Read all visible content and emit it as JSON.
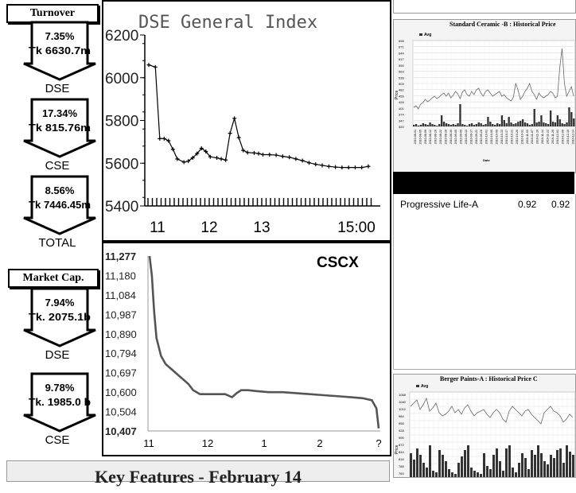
{
  "left": {
    "turnover_label": "Turnover",
    "market_cap_label": "Market Cap.",
    "arrows": [
      {
        "pct": "7.35%",
        "amount": "Tk 6630.7m",
        "exchange": "DSE"
      },
      {
        "pct": "17.34%",
        "amount": "Tk 815.76m",
        "exchange": "CSE"
      },
      {
        "pct": "8.56%",
        "amount": "Tk 7446.45m",
        "exchange": "TOTAL"
      },
      {
        "pct": "7.94%",
        "amount": "Tk. 2075.1b",
        "exchange": "DSE"
      },
      {
        "pct": "9.78%",
        "amount": "Tk. 1985.0 b",
        "exchange": "CSE"
      }
    ],
    "arrow_direction": "down"
  },
  "footer": {
    "key_features": "Key Features - February 14"
  },
  "right": {
    "chart1_title": "Standard Ceramic -B : Historical Price",
    "chart1_legend": "Avg",
    "chart1_ylabel": "Price",
    "chart1_xlabel": "Date",
    "chart1_yticks": [
      "698",
      "671",
      "644",
      "617",
      "590",
      "563",
      "536",
      "509",
      "482",
      "455",
      "428",
      "401",
      "374",
      "347",
      "320"
    ],
    "chart1_xticks": [
      "2010-08-01",
      "2010-08-05",
      "2010-08-09",
      "2010-08-12",
      "2010-08-16",
      "2010-08-22",
      "2010-08-26",
      "2010-08-30",
      "2010-09-05",
      "2010-09-09",
      "2010-09-13",
      "2010-09-17",
      "2010-09-21",
      "2010-09-26",
      "2010-10-01",
      "2010-10-05",
      "2010-10-09",
      "2010-10-13",
      "2010-10-17",
      "2010-10-21",
      "2010-10-26",
      "2010-10-31",
      "2010-11-03",
      "2010-11-07",
      "2010-11-10",
      "2010-11-14",
      "2010-11-22",
      "2010-11-26",
      "2010-12-01",
      "2010-12-06",
      "2010-12-10",
      "2010-12-14"
    ],
    "ticker": {
      "name": "Progressive Life-A",
      "v1": "0.92",
      "v2": "0.92"
    },
    "chart2_title": "Berger Paints-A : Historical Price C",
    "chart2_legend": "Avg",
    "chart2_ylabel": "Price",
    "chart2_yticks": [
      "1068",
      "1040",
      "1012",
      "984",
      "956",
      "928",
      "900",
      "872",
      "844",
      "816",
      "788",
      "760"
    ]
  },
  "chart_data": [
    {
      "type": "line",
      "title": "DSE General Index",
      "x_ticks": [
        "11",
        "12",
        "13",
        "15:00"
      ],
      "y_ticks": [
        "6200",
        "6000",
        "5800",
        "5600",
        "5400"
      ],
      "ylim": [
        5400,
        6200
      ],
      "xlim": [
        0,
        1
      ],
      "x": [
        0.0,
        0.03,
        0.05,
        0.07,
        0.09,
        0.11,
        0.13,
        0.16,
        0.18,
        0.2,
        0.22,
        0.24,
        0.26,
        0.28,
        0.31,
        0.33,
        0.35,
        0.37,
        0.39,
        0.41,
        0.43,
        0.45,
        0.48,
        0.5,
        0.52,
        0.55,
        0.58,
        0.61,
        0.64,
        0.67,
        0.7,
        0.73,
        0.76,
        0.79,
        0.82,
        0.85,
        0.88,
        0.91,
        0.94,
        0.97,
        1.0
      ],
      "values": [
        6060,
        6050,
        5715,
        5715,
        5705,
        5665,
        5620,
        5605,
        5610,
        5625,
        5645,
        5670,
        5655,
        5630,
        5625,
        5620,
        5615,
        5740,
        5810,
        5720,
        5660,
        5650,
        5648,
        5645,
        5640,
        5640,
        5638,
        5632,
        5628,
        5620,
        5612,
        5602,
        5595,
        5590,
        5585,
        5582,
        5580,
        5580,
        5580,
        5580,
        5585
      ],
      "grid": false
    },
    {
      "type": "line",
      "title": "CSCX",
      "x_ticks": [
        "11",
        "12",
        "1",
        "2",
        "?"
      ],
      "y_ticks": [
        "11,277",
        "11,180",
        "11,084",
        "10,987",
        "10,890",
        "10,794",
        "10,697",
        "10,600",
        "10,504",
        "10,407"
      ],
      "ylim": [
        10407,
        11277
      ],
      "xlim": [
        0,
        1
      ],
      "x": [
        0.0,
        0.01,
        0.02,
        0.03,
        0.05,
        0.07,
        0.09,
        0.11,
        0.13,
        0.15,
        0.17,
        0.19,
        0.22,
        0.25,
        0.29,
        0.33,
        0.36,
        0.38,
        0.4,
        0.43,
        0.47,
        0.52,
        0.58,
        0.64,
        0.7,
        0.76,
        0.82,
        0.88,
        0.93,
        0.97,
        0.99,
        1.0
      ],
      "values": [
        11277,
        11180,
        11000,
        10870,
        10780,
        10740,
        10720,
        10700,
        10680,
        10660,
        10640,
        10610,
        10590,
        10590,
        10590,
        10590,
        10575,
        10595,
        10610,
        10610,
        10605,
        10600,
        10600,
        10595,
        10590,
        10585,
        10580,
        10575,
        10570,
        10560,
        10520,
        10420
      ],
      "grid": false
    }
  ]
}
